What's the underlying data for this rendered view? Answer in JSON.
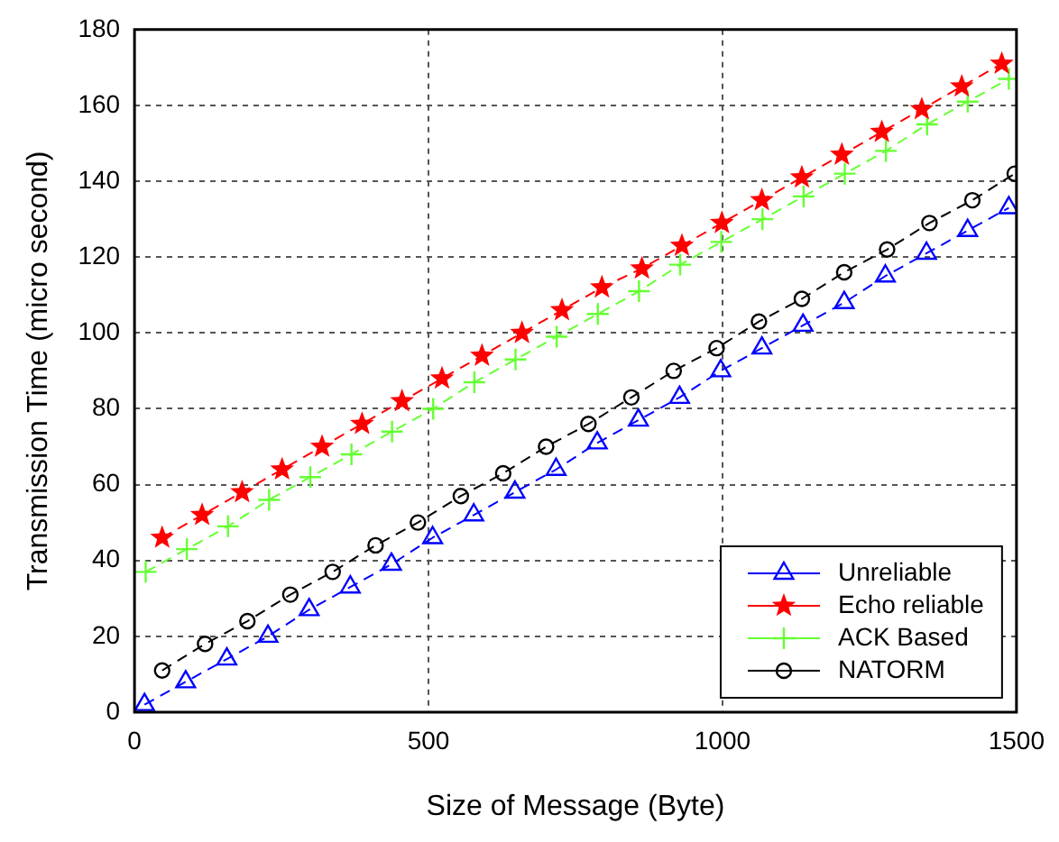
{
  "chart_data": {
    "type": "line",
    "xlabel": "Size of Message (Byte)",
    "ylabel": "Transmission Time (micro second)",
    "xlim": [
      0,
      1500
    ],
    "xticks": [
      0,
      500,
      1000,
      1500
    ],
    "ylim": [
      0,
      180
    ],
    "yticks": [
      0,
      20,
      40,
      60,
      80,
      100,
      120,
      140,
      160,
      180
    ],
    "grid": true,
    "legend": "bottom right",
    "line_style": "dashed",
    "series": [
      {
        "name": "Unreliable",
        "color": "#0000ff",
        "marker": "triangle",
        "x": [
          17,
          87,
          157,
          227,
          297,
          367,
          437,
          507,
          577,
          647,
          717,
          787,
          857,
          927,
          997,
          1067,
          1137,
          1207,
          1277,
          1347,
          1417,
          1487
        ],
        "values": [
          2,
          8,
          14,
          20,
          27,
          33,
          39,
          46,
          52,
          58,
          64,
          71,
          77,
          83,
          90,
          96,
          102,
          108,
          115,
          121,
          127,
          133
        ]
      },
      {
        "name": "Echo reliable",
        "color": "#ff0000",
        "marker": "star",
        "x": [
          47,
          115,
          183,
          251,
          319,
          387,
          455,
          523,
          591,
          659,
          727,
          795,
          863,
          931,
          999,
          1067,
          1135,
          1203,
          1271,
          1339,
          1407,
          1475
        ],
        "values": [
          46,
          52,
          58,
          64,
          70,
          76,
          82,
          88,
          94,
          100,
          106,
          112,
          117,
          123,
          129,
          135,
          141,
          147,
          153,
          159,
          165,
          171
        ]
      },
      {
        "name": "ACK Based",
        "color": "#66ff33",
        "marker": "cross",
        "x": [
          19,
          89,
          159,
          229,
          299,
          369,
          438,
          508,
          578,
          648,
          718,
          788,
          858,
          928,
          998,
          1068,
          1138,
          1208,
          1278,
          1348,
          1417,
          1487
        ],
        "values": [
          37,
          43,
          49,
          56,
          62,
          68,
          74,
          80,
          87,
          93,
          99,
          105,
          111,
          118,
          124,
          130,
          136,
          142,
          148,
          155,
          161,
          167
        ]
      },
      {
        "name": "NATORM",
        "color": "#000000",
        "marker": "circle",
        "x": [
          47,
          120,
          192,
          265,
          337,
          410,
          482,
          555,
          627,
          700,
          772,
          845,
          917,
          990,
          1062,
          1135,
          1207,
          1280,
          1352,
          1425,
          1497
        ],
        "values": [
          11,
          18,
          24,
          31,
          37,
          44,
          50,
          57,
          63,
          70,
          76,
          83,
          90,
          96,
          103,
          109,
          116,
          122,
          129,
          135,
          142
        ]
      }
    ]
  }
}
